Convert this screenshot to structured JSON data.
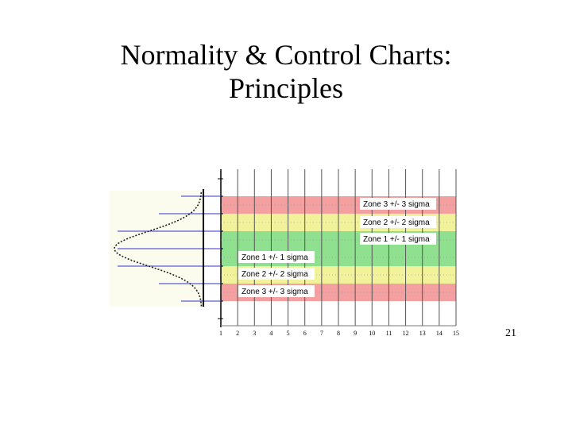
{
  "slide": {
    "title_line1": "Normality & Control Charts:",
    "title_line2": "Principles",
    "slide_number": "21"
  },
  "colors": {
    "zone3": "#f4a0a0",
    "zone2": "#f2f29a",
    "zone1": "#8fe08f",
    "sigma_line": "#3333cc",
    "grid": "#000000"
  },
  "chart_data": {
    "type": "table",
    "x_ticks": [
      "1",
      "2",
      "3",
      "4",
      "5",
      "6",
      "7",
      "8",
      "9",
      "10",
      "11",
      "12",
      "13",
      "14",
      "15"
    ],
    "zones": [
      {
        "name": "Zone 3 +/- 3 sigma",
        "sigma_from": 2,
        "sigma_to": 3,
        "color": "zone3"
      },
      {
        "name": "Zone 2 +/- 2 sigma",
        "sigma_from": 1,
        "sigma_to": 2,
        "color": "zone2"
      },
      {
        "name": "Zone 1 +/- 1 sigma",
        "sigma_from": 0,
        "sigma_to": 1,
        "color": "zone1"
      },
      {
        "name": "Zone 1 +/- 1 sigma",
        "sigma_from": -1,
        "sigma_to": 0,
        "color": "zone1"
      },
      {
        "name": "Zone 2 +/- 2 sigma",
        "sigma_from": -2,
        "sigma_to": -1,
        "color": "zone2"
      },
      {
        "name": "Zone 3 +/- 3 sigma",
        "sigma_from": -3,
        "sigma_to": -2,
        "color": "zone3"
      }
    ],
    "sigma_lines": [
      3,
      2,
      1,
      0,
      -1,
      -2,
      -3
    ],
    "ylim": [
      -4,
      4.5
    ],
    "distribution": "normal"
  }
}
